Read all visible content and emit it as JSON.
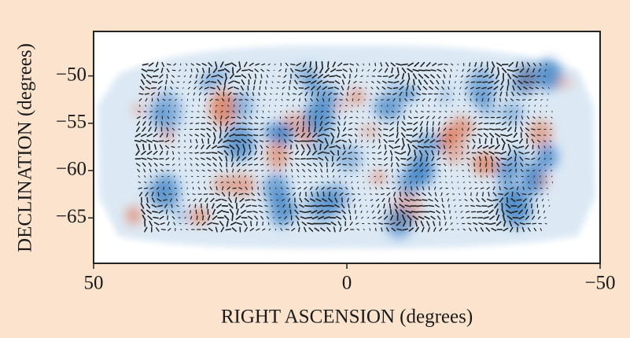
{
  "chart_data": {
    "type": "map",
    "xlabel": "RIGHT ASCENSION (degrees)",
    "ylabel": "DECLINATION (degrees)",
    "xlim": [
      50,
      -50
    ],
    "xticks": [
      50,
      0,
      {
        "value": -50,
        "label": "−50"
      }
    ],
    "ylim": [
      -69.8,
      -45.3
    ],
    "yticks": [
      {
        "value": -50,
        "label": "−50"
      },
      {
        "value": -55,
        "label": "−55"
      },
      {
        "value": -60,
        "label": "−60"
      },
      {
        "value": -65,
        "label": "−65"
      }
    ]
  }
}
